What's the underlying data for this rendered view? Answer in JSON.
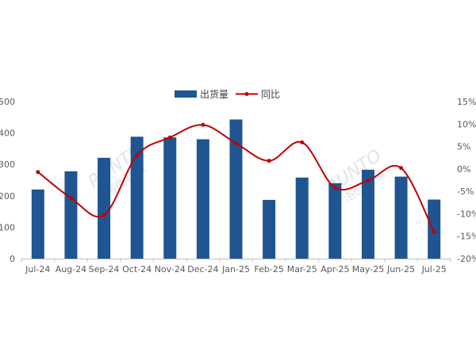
{
  "chart_data": {
    "type": "bar",
    "categories": [
      "Jul-24",
      "Aug-24",
      "Sep-24",
      "Oct-24",
      "Nov-24",
      "Dec-24",
      "Jan-25",
      "Feb-25",
      "Mar-25",
      "Apr-25",
      "May-25",
      "Jun-25",
      "Jul-25"
    ],
    "series": [
      {
        "name": "出货量",
        "type": "bar",
        "axis": "left",
        "color": "#1f5591",
        "values": [
          220,
          278,
          321,
          388,
          386,
          380,
          443,
          187,
          258,
          240,
          283,
          261,
          188
        ]
      },
      {
        "name": "同比",
        "type": "line",
        "axis": "right",
        "color": "#c00000",
        "values": [
          -0.7,
          -6.5,
          -10.3,
          3.0,
          7.0,
          9.8,
          5.7,
          1.8,
          5.9,
          -4.2,
          -2.6,
          0.2,
          -14.1
        ]
      }
    ],
    "ylim_left": [
      0,
      500
    ],
    "yticks_left": [
      "0",
      "100",
      "200",
      "300",
      "400",
      "500"
    ],
    "ylim_right": [
      -20,
      15
    ],
    "yticks_right": [
      "-20%",
      "-15%",
      "-10%",
      "-5%",
      "0%",
      "5%",
      "10%",
      "15%"
    ],
    "legend_position": "top-center",
    "watermarks": [
      "RUNTO 洛图科技",
      "RUNTO 洛图科技"
    ],
    "grid": false
  }
}
